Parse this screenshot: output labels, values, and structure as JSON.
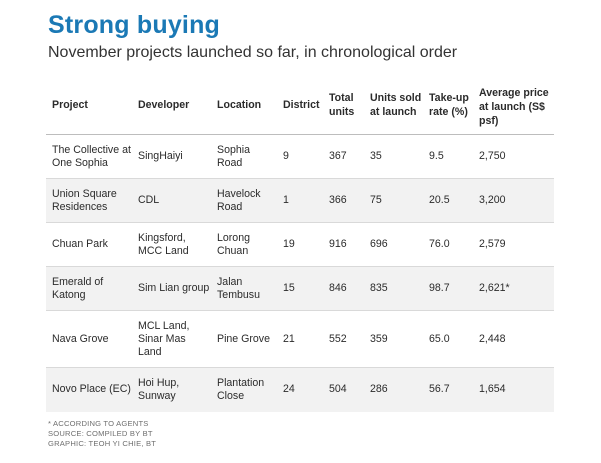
{
  "title": "Strong buying",
  "subtitle": "November projects launched so far, in chronological order",
  "table": {
    "headers": {
      "project": "Project",
      "developer": "Developer",
      "location": "Location",
      "district": "District",
      "total_units": "Total units",
      "units_sold": "Units sold at launch",
      "take_up": "Take-up rate (%)",
      "avg_price": "Average price at launch (S$ psf)"
    },
    "rows": [
      {
        "project": "The Collective at One Sophia",
        "developer": "SingHaiyi",
        "location": "Sophia Road",
        "district": "9",
        "total_units": "367",
        "units_sold": "35",
        "take_up": "9.5",
        "avg_price": "2,750"
      },
      {
        "project": "Union Square Residences",
        "developer": "CDL",
        "location": "Havelock Road",
        "district": "1",
        "total_units": "366",
        "units_sold": "75",
        "take_up": "20.5",
        "avg_price": "3,200"
      },
      {
        "project": "Chuan Park",
        "developer": "Kingsford, MCC Land",
        "location": "Lorong Chuan",
        "district": "19",
        "total_units": "916",
        "units_sold": "696",
        "take_up": "76.0",
        "avg_price": "2,579"
      },
      {
        "project": "Emerald of Katong",
        "developer": "Sim Lian group",
        "location": "Jalan Tembusu",
        "district": "15",
        "total_units": "846",
        "units_sold": "835",
        "take_up": "98.7",
        "avg_price": "2,621*"
      },
      {
        "project": "Nava Grove",
        "developer": "MCL Land, Sinar Mas Land",
        "location": "Pine Grove",
        "district": "21",
        "total_units": "552",
        "units_sold": "359",
        "take_up": "65.0",
        "avg_price": "2,448"
      },
      {
        "project": "Novo Place (EC)",
        "developer": "Hoi Hup, Sunway",
        "location": "Plantation Close",
        "district": "24",
        "total_units": "504",
        "units_sold": "286",
        "take_up": "56.7",
        "avg_price": "1,654"
      }
    ]
  },
  "footnotes": {
    "note": "* ACCORDING TO AGENTS",
    "source": "SOURCE: COMPILED BY BT",
    "graphic": "GRAPHIC: TEOH YI CHIE, BT"
  },
  "colors": {
    "title": "#1b79b5",
    "stripe": "#f2f2f2"
  }
}
